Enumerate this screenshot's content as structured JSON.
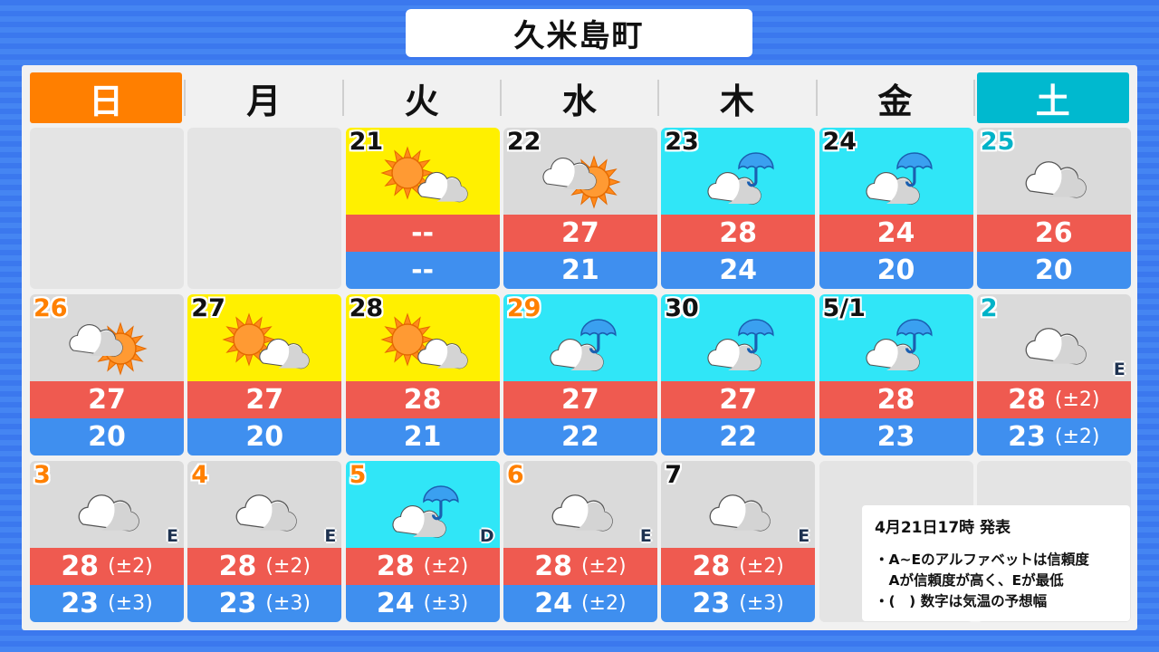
{
  "title": "久米島町",
  "weekdays": [
    "日",
    "月",
    "火",
    "水",
    "木",
    "金",
    "土"
  ],
  "colors": {
    "sunday_header": "#ff7f00",
    "saturday_header": "#00b9cf",
    "sunny_bg": "#fff000",
    "cloudy_bg": "#dadada",
    "rain_bg": "#30e6f7",
    "high_temp": "#ef5a50",
    "low_temp": "#3f8fef",
    "holiday_date": "#ff8000",
    "saturday_date": "#00b3c8"
  },
  "rows": [
    [
      null,
      null,
      {
        "date": "21",
        "date_style": "normal",
        "bg": "sunny",
        "weather": "sun-cloud-icon",
        "high": "--",
        "low": "--"
      },
      {
        "date": "22",
        "date_style": "normal",
        "bg": "cloudy",
        "weather": "cloud-sun-icon",
        "high": "27",
        "low": "21"
      },
      {
        "date": "23",
        "date_style": "normal",
        "bg": "rain",
        "weather": "cloud-umbrella-icon",
        "high": "28",
        "low": "24"
      },
      {
        "date": "24",
        "date_style": "normal",
        "bg": "rain",
        "weather": "cloud-umbrella-icon",
        "high": "24",
        "low": "20"
      },
      {
        "date": "25",
        "date_style": "saturday",
        "bg": "cloudy",
        "weather": "cloud-icon",
        "high": "26",
        "low": "20"
      }
    ],
    [
      {
        "date": "26",
        "date_style": "holiday",
        "bg": "cloudy",
        "weather": "cloud-sun-icon",
        "high": "27",
        "low": "20"
      },
      {
        "date": "27",
        "date_style": "normal",
        "bg": "sunny",
        "weather": "sun-cloud-icon",
        "high": "27",
        "low": "20"
      },
      {
        "date": "28",
        "date_style": "normal",
        "bg": "sunny",
        "weather": "sun-cloud-icon",
        "high": "28",
        "low": "21"
      },
      {
        "date": "29",
        "date_style": "holiday",
        "bg": "rain",
        "weather": "cloud-umbrella-icon",
        "high": "27",
        "low": "22"
      },
      {
        "date": "30",
        "date_style": "normal",
        "bg": "rain",
        "weather": "cloud-umbrella-icon",
        "high": "27",
        "low": "22"
      },
      {
        "date": "5/1",
        "date_style": "normal",
        "bg": "rain",
        "weather": "cloud-umbrella-icon",
        "high": "28",
        "low": "23"
      },
      {
        "date": "2",
        "date_style": "saturday",
        "bg": "cloudy",
        "weather": "cloud-icon",
        "high": "28",
        "high_range": "(±2)",
        "low": "23",
        "low_range": "(±2)",
        "reliability": "E"
      }
    ],
    [
      {
        "date": "3",
        "date_style": "holiday",
        "bg": "cloudy",
        "weather": "cloud-icon",
        "high": "28",
        "high_range": "(±2)",
        "low": "23",
        "low_range": "(±3)",
        "reliability": "E"
      },
      {
        "date": "4",
        "date_style": "holiday",
        "bg": "cloudy",
        "weather": "cloud-icon",
        "high": "28",
        "high_range": "(±2)",
        "low": "23",
        "low_range": "(±3)",
        "reliability": "E"
      },
      {
        "date": "5",
        "date_style": "holiday",
        "bg": "rain",
        "weather": "cloud-umbrella-icon",
        "high": "28",
        "high_range": "(±2)",
        "low": "24",
        "low_range": "(±3)",
        "reliability": "D"
      },
      {
        "date": "6",
        "date_style": "holiday",
        "bg": "cloudy",
        "weather": "cloud-icon",
        "high": "28",
        "high_range": "(±2)",
        "low": "24",
        "low_range": "(±2)",
        "reliability": "E"
      },
      {
        "date": "7",
        "date_style": "normal",
        "bg": "cloudy",
        "weather": "cloud-icon",
        "high": "28",
        "high_range": "(±2)",
        "low": "23",
        "low_range": "(±3)",
        "reliability": "E"
      },
      null,
      null
    ]
  ],
  "note": {
    "issued": "4月21日17時 発表",
    "lines": [
      "・A~Eのアルファベットは信頼度",
      "　Aが信頼度が高く、Eが最低",
      "・(　) 数字は気温の予想幅"
    ]
  }
}
